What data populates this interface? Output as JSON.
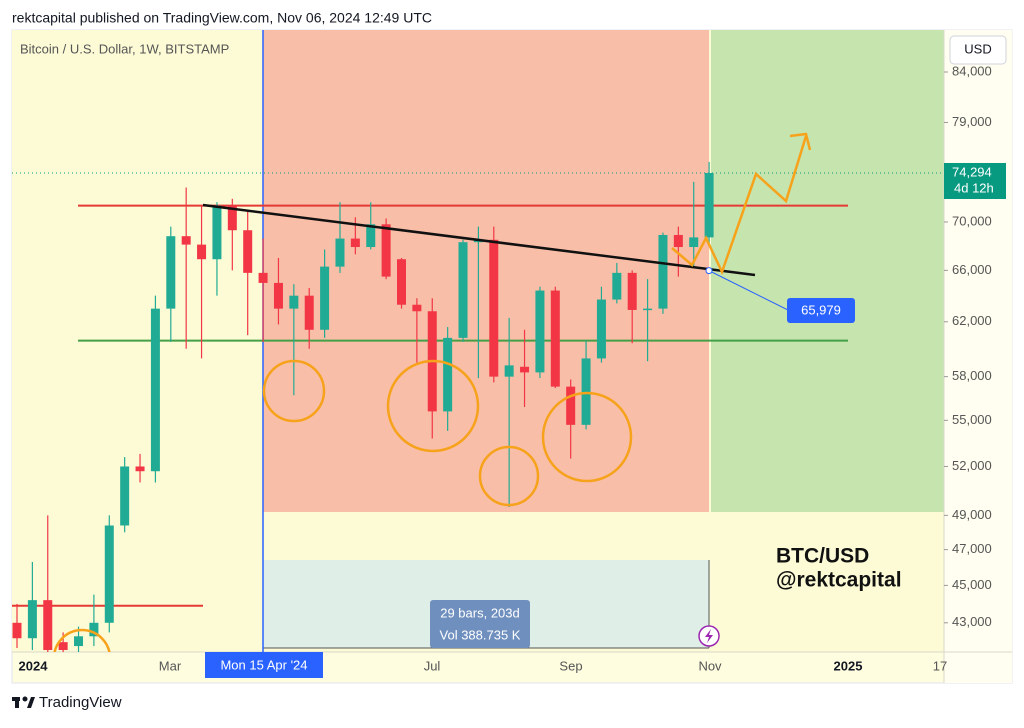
{
  "chart_data": {
    "type": "candlestick",
    "header": "rektcapital published on TradingView.com, Nov 06, 2024 12:49 UTC",
    "title": "Bitcoin / U.S. Dollar, 1W, BITSTAMP",
    "currency": "USD",
    "annotations": [
      "BTC/USD",
      "@rektcapital"
    ],
    "last_price": {
      "value": 74294,
      "label": "74,294"
    },
    "countdown": "4d 12h",
    "trend_label": {
      "value": 65979,
      "label": "65,979"
    },
    "measure": [
      "29 bars, 203d",
      "Vol 388.735 K"
    ],
    "crosshair_label": "Mon 15 Apr '24",
    "xtick_labels": [
      "2024",
      "Mar",
      "Jul",
      "Sep",
      "Nov",
      "2025",
      "17"
    ],
    "footer": "TradingView",
    "log_scale": true,
    "ylim": [
      41500,
      88400
    ],
    "yticks": [
      {
        "value": 84000,
        "label": "84,000"
      },
      {
        "value": 79000,
        "label": "79,000"
      },
      {
        "value": 70000,
        "label": "70,000"
      },
      {
        "value": 66000,
        "label": "66,000"
      },
      {
        "value": 62000,
        "label": "62,000"
      },
      {
        "value": 58000,
        "label": "58,000"
      },
      {
        "value": 55000,
        "label": "55,000"
      },
      {
        "value": 52000,
        "label": "52,000"
      },
      {
        "value": 49000,
        "label": "49,000"
      },
      {
        "value": 47000,
        "label": "47,000"
      },
      {
        "value": 45000,
        "label": "45,000"
      },
      {
        "value": 43000,
        "label": "43,000"
      }
    ],
    "up_color": "#22ab94",
    "down_color": "#f23645",
    "horizontal_lines": [
      {
        "value": 71400,
        "color": "#e53935"
      },
      {
        "value": 60600,
        "color": "#43a047"
      },
      {
        "value": 43900,
        "color": "#e53935"
      }
    ],
    "candles": {
      "open": [
        43000,
        42200,
        44200,
        42000,
        41800,
        42300,
        43000,
        48400,
        52000,
        51700,
        63000,
        68800,
        68100,
        66900,
        71400,
        69300,
        65800,
        65000,
        63000,
        64000,
        61400,
        66300,
        68600,
        67900,
        69800,
        66900,
        63300,
        62800,
        55600,
        60800,
        68300,
        68500,
        58000,
        58700,
        58300,
        64400,
        57300,
        54700,
        59300,
        63700,
        65800,
        62900,
        63000,
        68900,
        67900,
        68700
      ],
      "high": [
        44000,
        46300,
        49000,
        42500,
        42800,
        44500,
        49000,
        52600,
        52800,
        64000,
        69600,
        73000,
        71400,
        71700,
        72000,
        70900,
        68600,
        67000,
        64900,
        64600,
        67700,
        71700,
        70400,
        71700,
        70300,
        67000,
        63800,
        63800,
        61600,
        68500,
        69600,
        69600,
        62300,
        61400,
        64700,
        64700,
        57800,
        60600,
        64700,
        66600,
        66000,
        65300,
        69100,
        69600,
        73500,
        75300
      ],
      "low": [
        41700,
        41600,
        41500,
        41500,
        41500,
        41800,
        42500,
        48000,
        51000,
        51000,
        60500,
        60000,
        59300,
        64000,
        66000,
        61000,
        60500,
        61800,
        56700,
        60000,
        60800,
        65800,
        67300,
        67700,
        65300,
        63000,
        59000,
        53800,
        54300,
        60500,
        57900,
        57600,
        49500,
        55900,
        57900,
        57200,
        52500,
        54400,
        59000,
        63400,
        60400,
        59100,
        62600,
        65500,
        66300,
        68200
      ],
      "close": [
        42200,
        44200,
        41600,
        41600,
        42300,
        43000,
        48400,
        52000,
        51700,
        63000,
        68800,
        68100,
        66900,
        71400,
        69300,
        65800,
        65000,
        63000,
        64000,
        61400,
        66300,
        68600,
        67900,
        69800,
        65500,
        63300,
        62800,
        55600,
        60800,
        68300,
        68500,
        58000,
        58800,
        58300,
        64400,
        57300,
        54700,
        59300,
        63700,
        65800,
        62900,
        63000,
        68900,
        67900,
        68700,
        74294
      ]
    }
  }
}
